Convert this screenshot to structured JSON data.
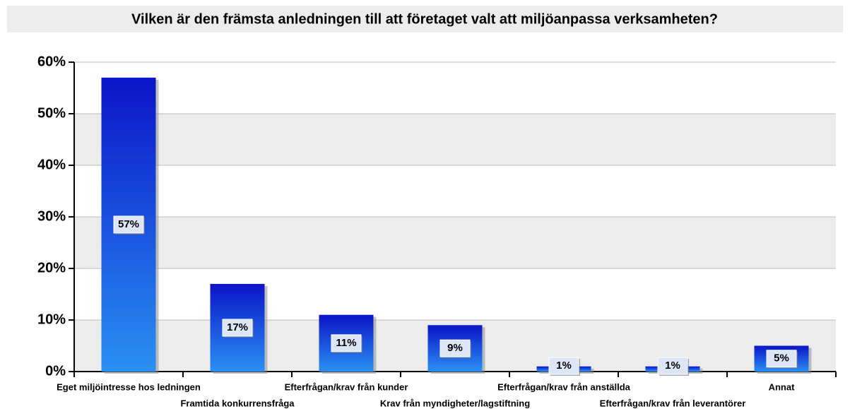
{
  "chart_data": {
    "type": "bar",
    "title": "Vilken är den främsta anledningen till att företaget valt att miljöanpassa verksamheten?",
    "categories": [
      "Eget miljöintresse hos ledningen",
      "Framtida konkurrensfråga",
      "Efterfrågan/krav från kunder",
      "Krav från myndigheter/lagstiftning",
      "Efterfrågan/krav från anställda",
      "Efterfrågan/krav från leverantörer",
      "Annat"
    ],
    "values": [
      57,
      17,
      11,
      9,
      1,
      1,
      5
    ],
    "value_labels": [
      "57%",
      "17%",
      "11%",
      "9%",
      "1%",
      "1%",
      "5%"
    ],
    "color": "#1a3fe0",
    "ylim": [
      0,
      60
    ],
    "yticks": [
      {
        "value": 0,
        "label": "0%"
      },
      {
        "value": 10,
        "label": "10%"
      },
      {
        "value": 20,
        "label": "20%"
      },
      {
        "value": 30,
        "label": "30%"
      },
      {
        "value": 40,
        "label": "40%"
      },
      {
        "value": 50,
        "label": "50%"
      },
      {
        "value": 60,
        "label": "60%"
      }
    ],
    "grid": true
  }
}
